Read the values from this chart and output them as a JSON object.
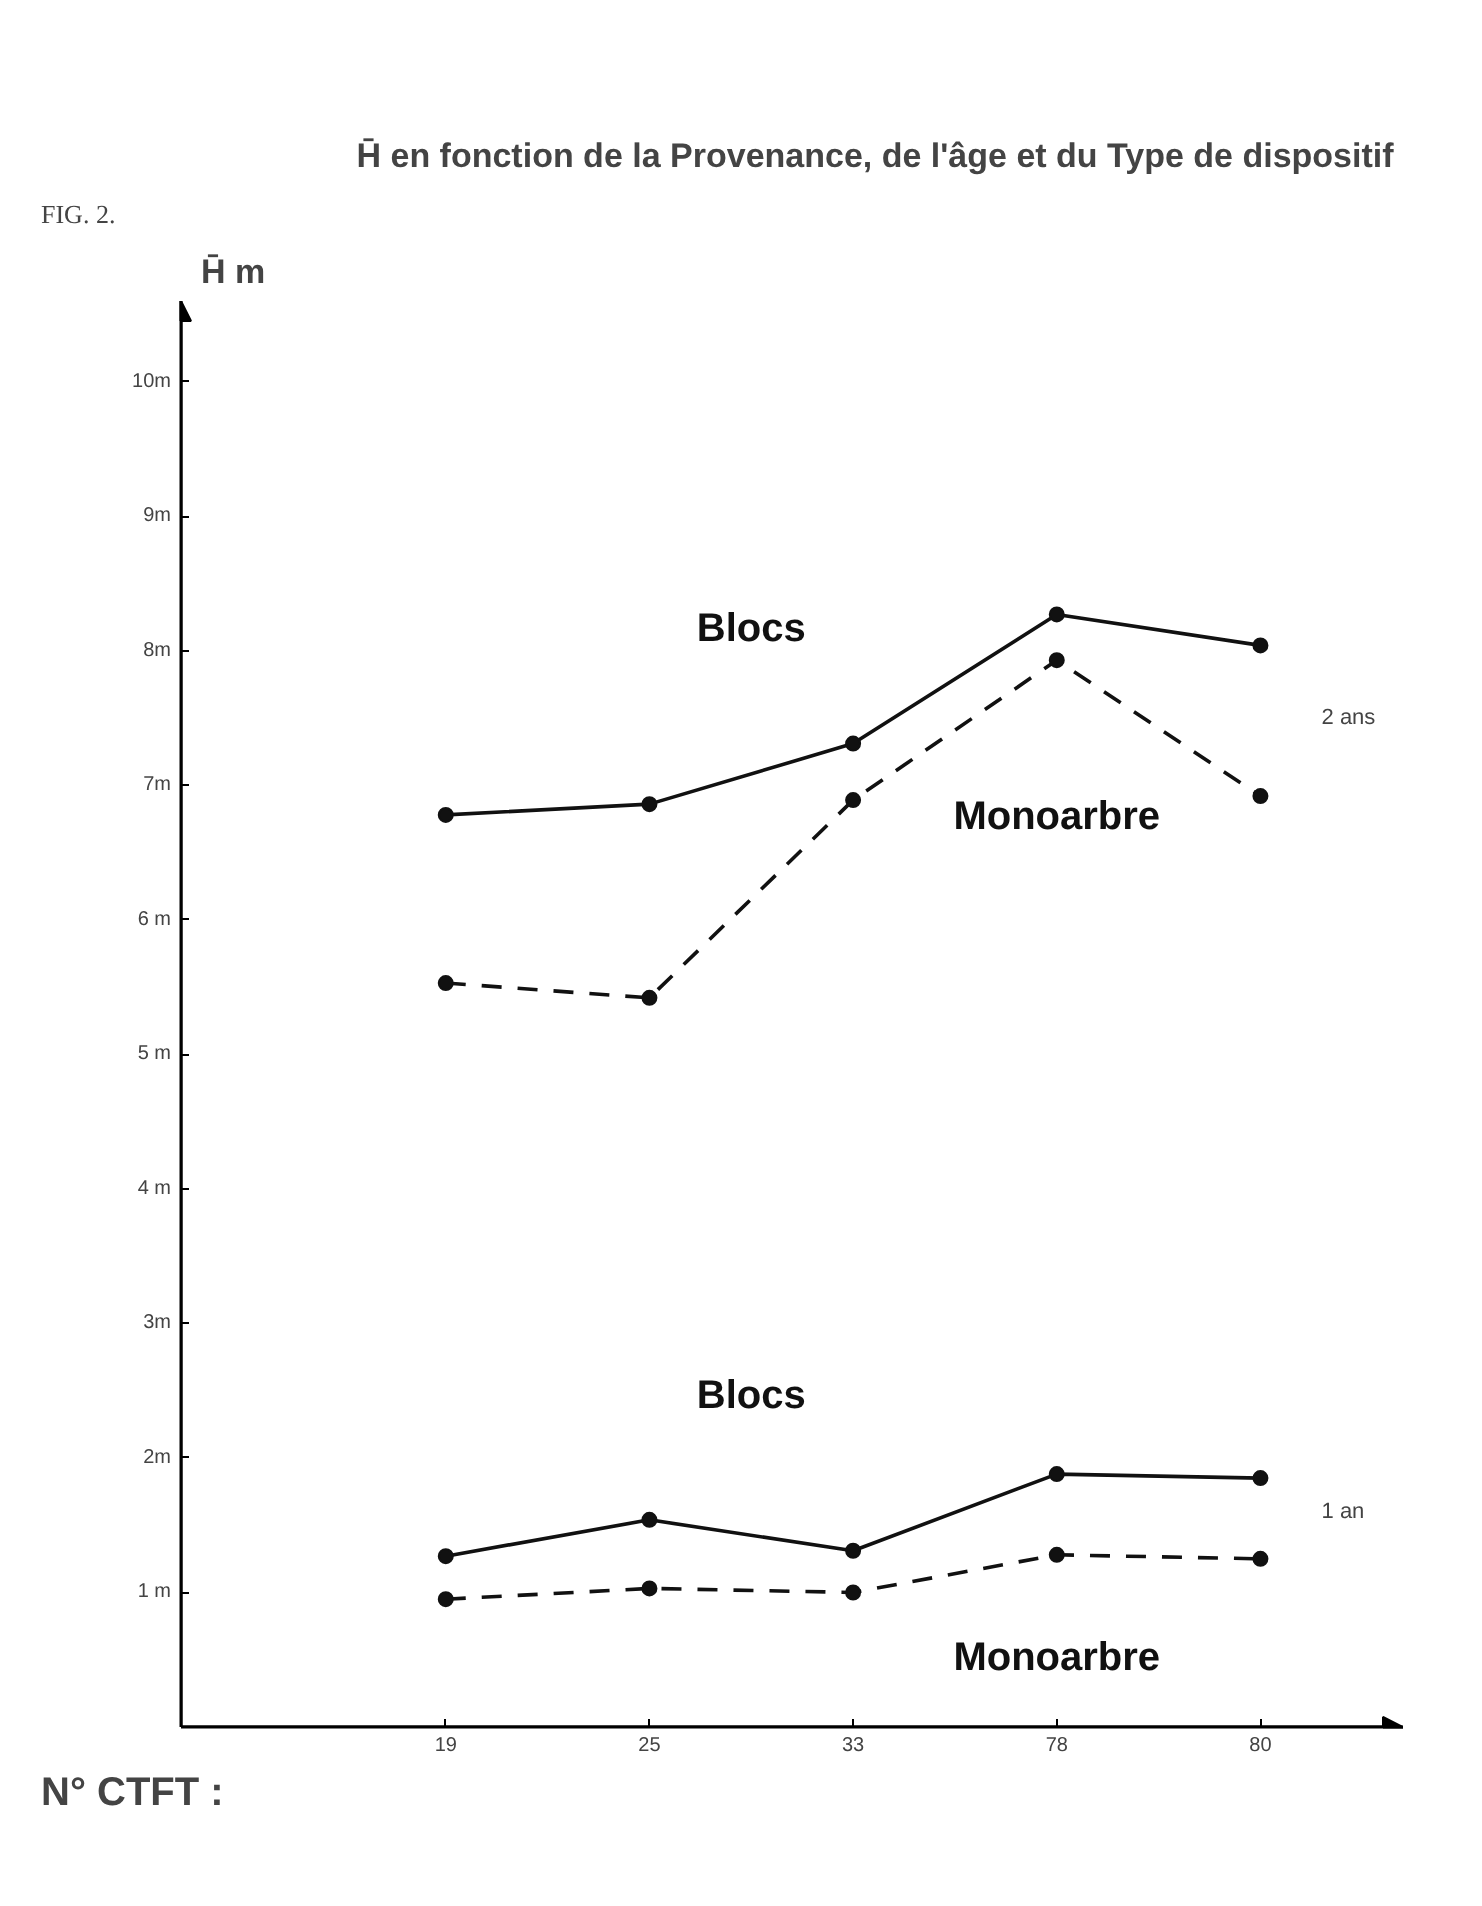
{
  "chart_data": {
    "type": "line",
    "title": "H̄  en fonction de la Provenance, de l'âge et du Type de dispositif",
    "ylabel": "H̄  m",
    "xlabel": "N° CTFT :",
    "categories": [
      "19",
      "25",
      "33",
      "78",
      "80"
    ],
    "series": [
      {
        "name": "Blocs",
        "color": "#111111",
        "line_style": "solid",
        "values": [
          6.78,
          6.86,
          7.31,
          8.27,
          8.04
        ]
      },
      {
        "name": "Monoarbre",
        "color": "#111111",
        "line_style": "dashed",
        "values": [
          5.53,
          5.42,
          6.89,
          7.93,
          6.92
        ]
      },
      {
        "name": "Blocs",
        "color": "#111111",
        "line_style": "solid",
        "values": [
          1.27,
          1.54,
          1.31,
          1.88,
          1.85
        ]
      },
      {
        "name": "Monoarbre",
        "color": "#111111",
        "line_style": "dashed",
        "values": [
          0.95,
          1.03,
          1.0,
          1.28,
          1.25
        ]
      }
    ],
    "ylim": [
      0,
      10.6
    ],
    "yticks": [
      {
        "value": 1,
        "label": "1 m"
      },
      {
        "value": 2,
        "label": "2m"
      },
      {
        "value": 3,
        "label": "3m"
      },
      {
        "value": 4,
        "label": "4 m"
      },
      {
        "value": 5,
        "label": "5 m"
      },
      {
        "value": 6,
        "label": "6 m"
      },
      {
        "value": 7,
        "label": "7m"
      },
      {
        "value": 8,
        "label": "8m"
      },
      {
        "value": 9,
        "label": "9m"
      },
      {
        "value": 10,
        "label": "10m"
      }
    ],
    "annotations": [
      "FIG. 2.",
      "2 ans",
      "1 an"
    ],
    "marker": "circle",
    "grid": false
  }
}
